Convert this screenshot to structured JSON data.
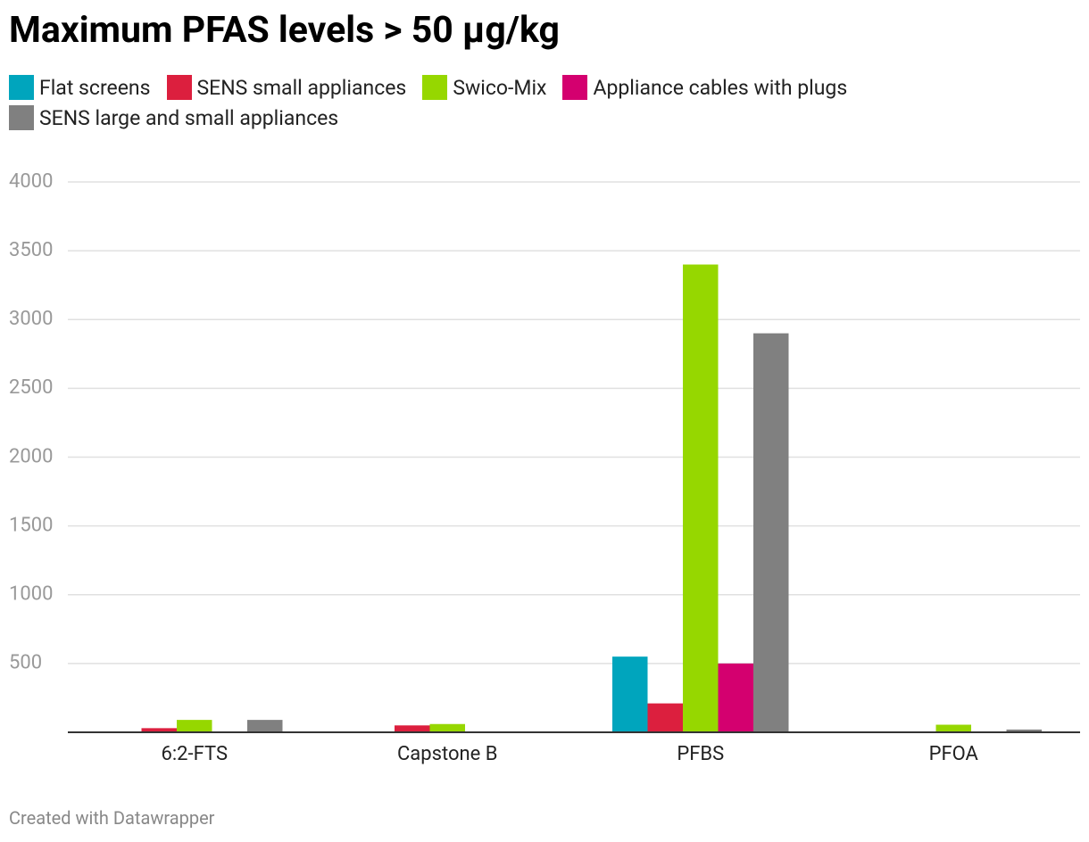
{
  "chart_data": {
    "type": "bar",
    "title": "Maximum PFAS levels > 50 µg/kg",
    "categories": [
      "6:2-FTS",
      "Capstone B",
      "PFBS",
      "PFOA"
    ],
    "series": [
      {
        "name": "Flat screens",
        "color": "#00a5bd",
        "values": [
          null,
          null,
          550,
          null
        ]
      },
      {
        "name": "SENS small appliances",
        "color": "#dc1f3e",
        "values": [
          30,
          50,
          210,
          null
        ]
      },
      {
        "name": "Swico-Mix",
        "color": "#96d700",
        "values": [
          90,
          60,
          3400,
          55
        ]
      },
      {
        "name": "Appliance cables with plugs",
        "color": "#d4006f",
        "values": [
          null,
          null,
          500,
          null
        ]
      },
      {
        "name": "SENS large and small appliances",
        "color": "#808080",
        "values": [
          90,
          null,
          2900,
          20
        ]
      }
    ],
    "ylim": [
      0,
      4000
    ],
    "yticks": [
      500,
      1000,
      1500,
      2000,
      2500,
      3000,
      3500,
      4000
    ],
    "grid": true,
    "footer": "Created with Datawrapper"
  }
}
